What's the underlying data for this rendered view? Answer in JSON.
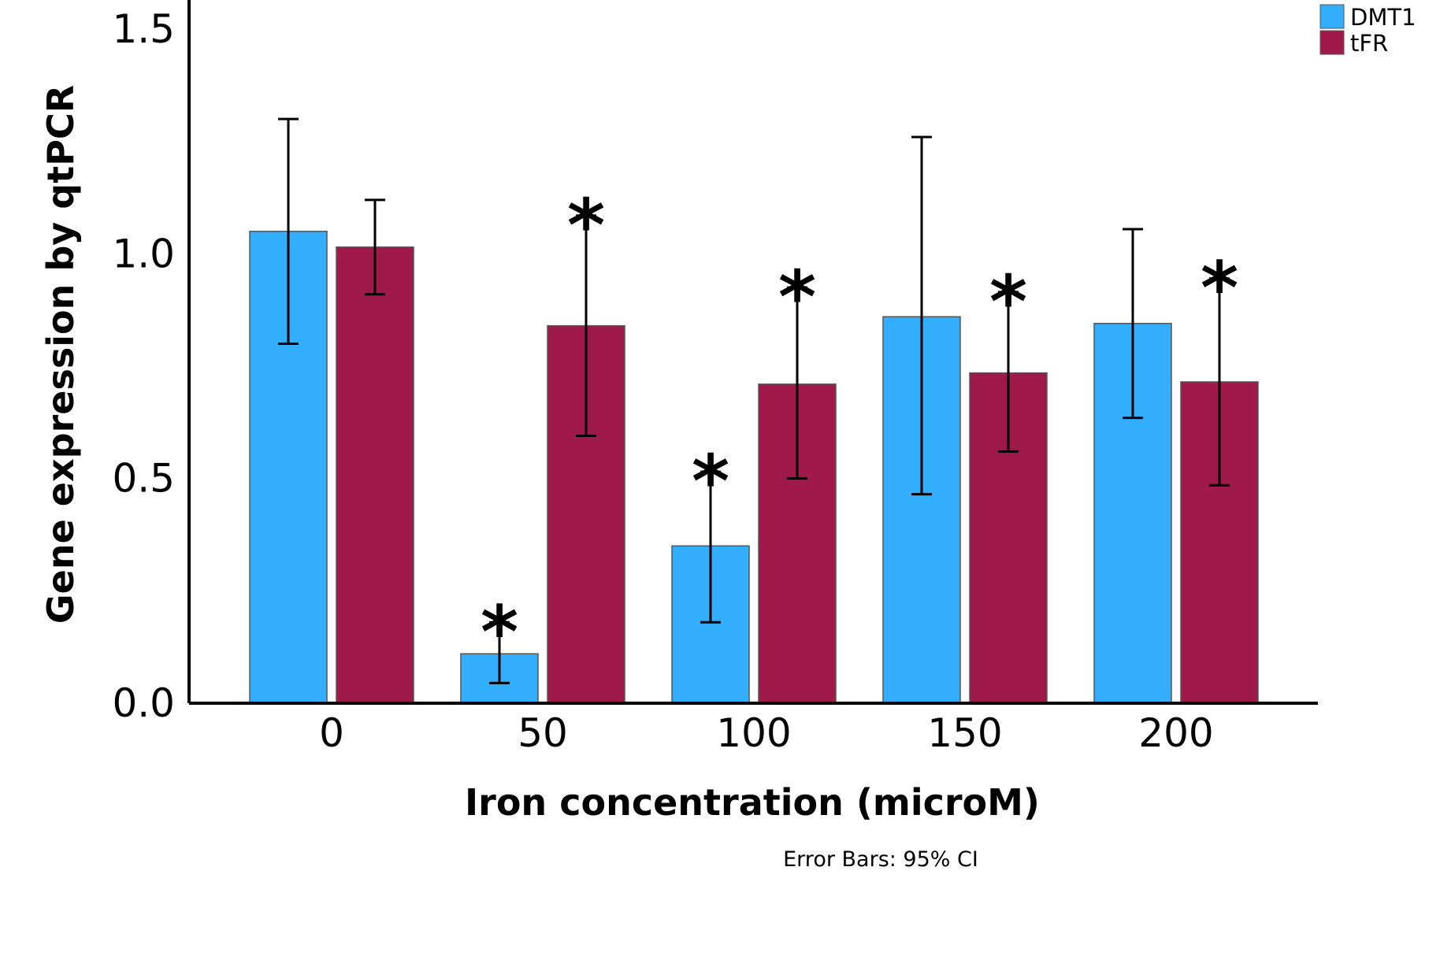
{
  "chart_data": {
    "type": "bar",
    "categories": [
      "0",
      "50",
      "100",
      "150",
      "200"
    ],
    "series": [
      {
        "name": "DMT1",
        "color": "#33aefc",
        "values": [
          1.05,
          0.11,
          0.35,
          0.86,
          0.845
        ],
        "ci_low": [
          0.8,
          0.045,
          0.18,
          0.465,
          0.635
        ],
        "ci_high": [
          1.3,
          0.18,
          0.515,
          1.26,
          1.055
        ],
        "significant": [
          false,
          true,
          true,
          false,
          false
        ]
      },
      {
        "name": "tFR",
        "color": "#a0194b",
        "values": [
          1.015,
          0.84,
          0.71,
          0.735,
          0.715
        ],
        "ci_low": [
          0.91,
          0.595,
          0.5,
          0.56,
          0.485
        ],
        "ci_high": [
          1.12,
          1.085,
          0.925,
          0.915,
          0.945
        ],
        "significant": [
          false,
          true,
          true,
          true,
          true
        ]
      }
    ],
    "xlabel": "Iron concentration (microM)",
    "ylabel": "Gene expression by qtPCR",
    "ylim": [
      0,
      1.55
    ],
    "yticks": [
      "0.0",
      "0.5",
      "1.0",
      "1.5"
    ],
    "ytick_values": [
      0,
      0.5,
      1.0,
      1.5
    ],
    "note": "Error Bars: 95% CI",
    "significance_marker": "*",
    "legend_position": "top-right",
    "grid": false
  }
}
